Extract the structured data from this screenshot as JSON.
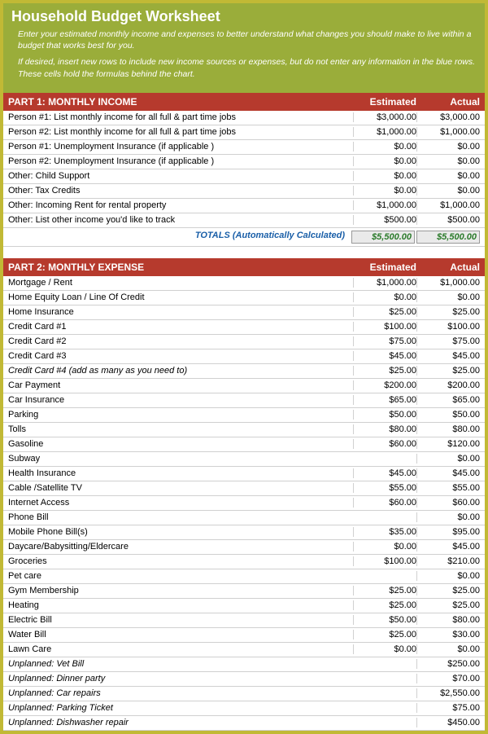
{
  "colors": {
    "header_bg": "#9aad3a",
    "section_bg": "#b63a2d",
    "border": "#c1b935",
    "totals_text": "#2a7a2a",
    "totals_label": "#1a5fa8"
  },
  "header": {
    "title": "Household Budget Worksheet",
    "instruction1": "Enter your estimated monthly income and expenses to better understand what changes you should make to live within a budget that works best for you.",
    "instruction2": "If desired, insert new rows to include new income sources or expenses, but do not enter any information in the blue rows. These cells hold the formulas behind the chart."
  },
  "columns": {
    "estimated": "Estimated",
    "actual": "Actual"
  },
  "part1": {
    "title": "PART 1: MONTHLY INCOME",
    "rows": [
      {
        "label": "Person #1: List monthly income for all full & part time jobs",
        "est": "$3,000.00",
        "act": "$3,000.00"
      },
      {
        "label": "Person #2: List monthly income for all full & part time jobs",
        "est": "$1,000.00",
        "act": "$1,000.00"
      },
      {
        "label": "Person #1: Unemployment Insurance (if applicable )",
        "est": "$0.00",
        "act": "$0.00"
      },
      {
        "label": "Person #2: Unemployment Insurance (if applicable )",
        "est": "$0.00",
        "act": "$0.00"
      },
      {
        "label": "Other: Child Support",
        "est": "$0.00",
        "act": "$0.00"
      },
      {
        "label": "Other: Tax Credits",
        "est": "$0.00",
        "act": "$0.00"
      },
      {
        "label": "Other: Incoming Rent for rental property",
        "est": "$1,000.00",
        "act": "$1,000.00"
      },
      {
        "label": "Other: List other income you'd like to  track",
        "est": "$500.00",
        "act": "$500.00"
      }
    ],
    "totals": {
      "label": "TOTALS (Automatically Calculated)",
      "est": "$5,500.00",
      "act": "$5,500.00"
    }
  },
  "part2": {
    "title": "PART 2: MONTHLY EXPENSE",
    "rows": [
      {
        "label": "Mortgage / Rent",
        "est": "$1,000.00",
        "act": "$1,000.00"
      },
      {
        "label": "Home Equity Loan / Line Of Credit",
        "est": "$0.00",
        "act": "$0.00"
      },
      {
        "label": "Home Insurance",
        "est": "$25.00",
        "act": "$25.00"
      },
      {
        "label": "Credit Card #1",
        "est": "$100.00",
        "act": "$100.00"
      },
      {
        "label": "Credit Card #2",
        "est": "$75.00",
        "act": "$75.00"
      },
      {
        "label": "Credit Card #3",
        "est": "$45.00",
        "act": "$45.00"
      },
      {
        "label": "Credit Card #4 (add as many as you need to)",
        "italic": true,
        "est": "$25.00",
        "act": "$25.00"
      },
      {
        "label": "Car Payment",
        "est": "$200.00",
        "act": "$200.00"
      },
      {
        "label": "Car Insurance",
        "est": "$65.00",
        "act": "$65.00"
      },
      {
        "label": "Parking",
        "est": "$50.00",
        "act": "$50.00"
      },
      {
        "label": "Tolls",
        "est": "$80.00",
        "act": "$80.00"
      },
      {
        "label": "Gasoline",
        "est": "$60.00",
        "act": "$120.00"
      },
      {
        "label": "Subway",
        "est": "",
        "act": "$0.00"
      },
      {
        "label": "Health Insurance",
        "est": "$45.00",
        "act": "$45.00"
      },
      {
        "label": "Cable /Satellite TV",
        "est": "$55.00",
        "act": "$55.00"
      },
      {
        "label": "Internet Access",
        "est": "$60.00",
        "act": "$60.00"
      },
      {
        "label": "Phone Bill",
        "est": "",
        "act": "$0.00"
      },
      {
        "label": "Mobile Phone Bill(s)",
        "est": "$35.00",
        "act": "$95.00"
      },
      {
        "label": "Daycare/Babysitting/Eldercare",
        "est": "$0.00",
        "act": "$45.00"
      },
      {
        "label": "Groceries",
        "est": "$100.00",
        "act": "$210.00"
      },
      {
        "label": "Pet care",
        "est": "",
        "act": "$0.00"
      },
      {
        "label": "Gym Membership",
        "est": "$25.00",
        "act": "$25.00"
      },
      {
        "label": "Heating",
        "est": "$25.00",
        "act": "$25.00"
      },
      {
        "label": "Electric Bill",
        "est": "$50.00",
        "act": "$80.00"
      },
      {
        "label": "Water Bill",
        "est": "$25.00",
        "act": "$30.00"
      },
      {
        "label": "Lawn Care",
        "est": "$0.00",
        "act": "$0.00"
      },
      {
        "label": "Unplanned: Vet Bill",
        "italic": true,
        "est": "",
        "act": "$250.00"
      },
      {
        "label": "Unplanned: Dinner party",
        "italic": true,
        "est": "",
        "act": "$70.00"
      },
      {
        "label": "Unplanned: Car repairs",
        "italic": true,
        "est": "",
        "act": "$2,550.00"
      },
      {
        "label": "Unplanned: Parking Ticket",
        "italic": true,
        "est": "",
        "act": "$75.00"
      },
      {
        "label": "Unplanned: Dishwasher repair",
        "italic": true,
        "est": "",
        "act": "$450.00"
      }
    ]
  }
}
